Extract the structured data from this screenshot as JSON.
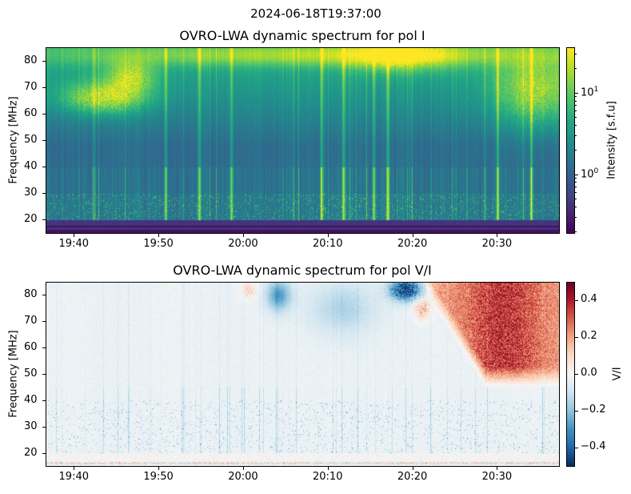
{
  "suptitle": "2024-06-18T19:37:00",
  "chart_data": [
    {
      "type": "heatmap",
      "title": "OVRO-LWA dynamic spectrum for pol I",
      "xlabel": "",
      "ylabel": "Frequency [MHz]",
      "xlim": [
        "19:36:40",
        "20:37:20"
      ],
      "ylim": [
        15,
        85
      ],
      "xticks": [
        "19:40",
        "19:50",
        "20:00",
        "20:10",
        "20:20",
        "20:30"
      ],
      "yticks": [
        20,
        30,
        40,
        50,
        60,
        70,
        80
      ],
      "colormap": "viridis",
      "colorbar": {
        "label": "Intensity [s.f.u]",
        "scale": "log",
        "range": [
          0.19,
          36
        ],
        "ticks": [
          {
            "value": 1,
            "label": "10",
            "exp": "0"
          },
          {
            "value": 10,
            "label": "10",
            "exp": "1"
          }
        ]
      },
      "features": "Flagged band 15-20 MHz low; broadband vertical bursts; bright emission 60-75 MHz at 19:38-19:49, 75-85 MHz at 20:15-20:23, and 55-85 MHz after 20:31"
    },
    {
      "type": "heatmap",
      "title": "OVRO-LWA dynamic spectrum for pol V/I",
      "xlabel": "",
      "ylabel": "Frequency [MHz]",
      "xlim": [
        "19:36:40",
        "20:37:20"
      ],
      "ylim": [
        15,
        85
      ],
      "xticks": [
        "19:40",
        "19:50",
        "20:00",
        "20:10",
        "20:20",
        "20:30"
      ],
      "yticks": [
        20,
        30,
        40,
        50,
        60,
        70,
        80
      ],
      "colormap": "RdBu_r",
      "colorbar": {
        "label": "V/I",
        "scale": "linear",
        "range": [
          -0.5,
          0.5
        ],
        "ticks": [
          {
            "value": 0.4,
            "label": "0.4"
          },
          {
            "value": 0.2,
            "label": "0.2"
          },
          {
            "value": 0.0,
            "label": "0.0"
          },
          {
            "value": -0.2,
            "label": "−0.2"
          },
          {
            "value": -0.4,
            "label": "−0.4"
          }
        ]
      },
      "features": "Mostly near zero / slightly negative; strong positive region above ~45-80 MHz from 20:24 onward; negative patch 75-85 MHz near 20:17-20:20"
    }
  ]
}
